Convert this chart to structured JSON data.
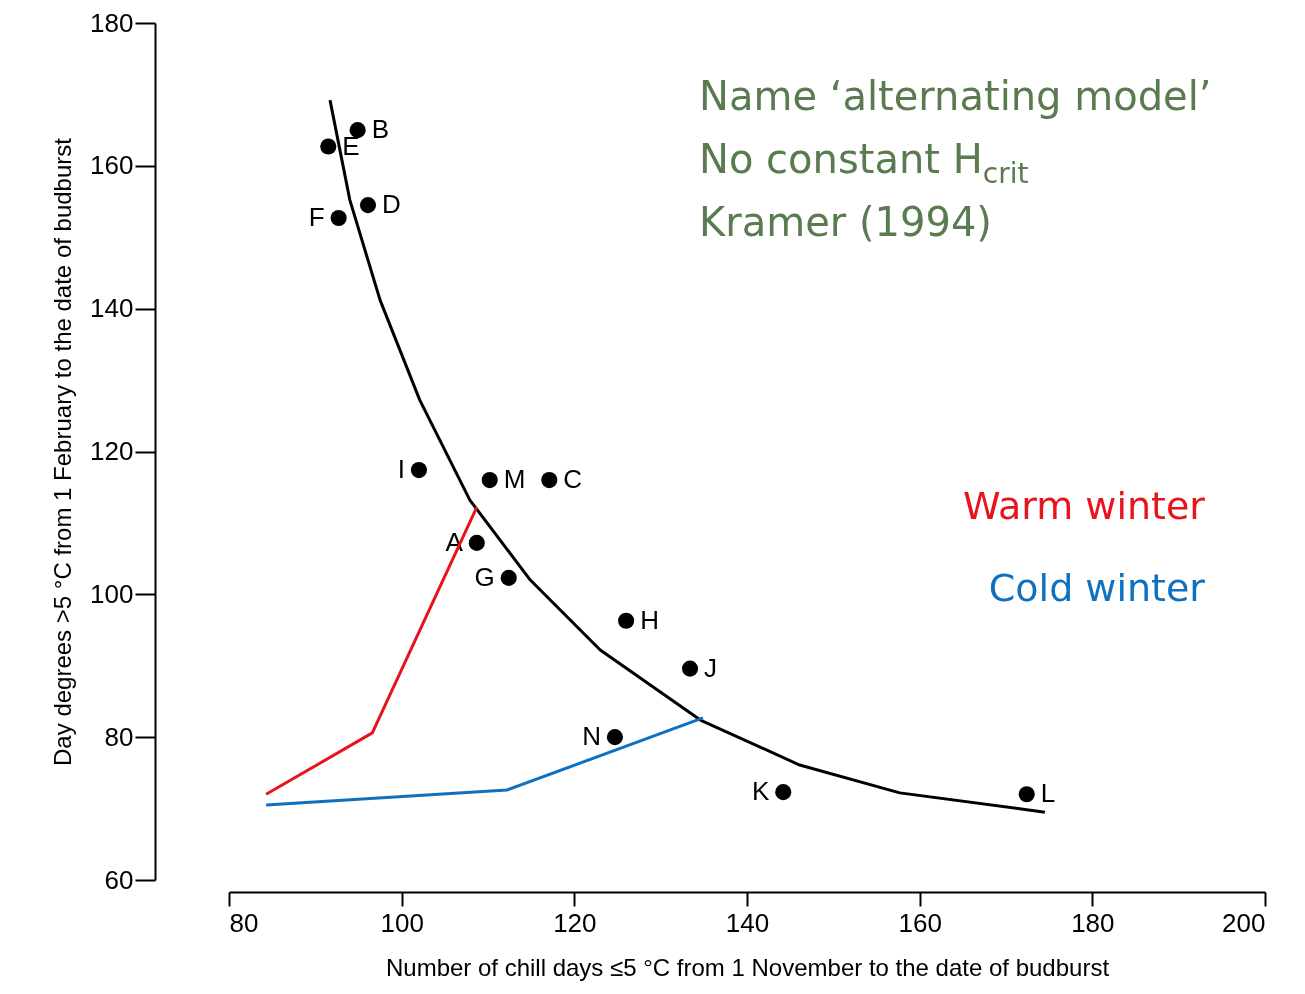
{
  "chart_data": {
    "type": "scatter",
    "xlabel": "Number of chill days ≤5 °C from 1 November to the date of budburst",
    "ylabel": "Day degrees >5 °C from 1 February to the date of budburst",
    "xlim": [
      80,
      200
    ],
    "ylim": [
      60,
      180
    ],
    "xticks": [
      80,
      100,
      120,
      140,
      160,
      180,
      200
    ],
    "yticks": [
      60,
      80,
      100,
      120,
      140,
      160,
      180
    ],
    "grid": false,
    "annotations": [
      "Name ‘alternating model’",
      "No constant H$_{crit}$",
      "Kramer (1994)"
    ],
    "series": [
      {
        "color": "#000000",
        "marker": "circle",
        "x": [
          91.5,
          94.9,
          96.1,
          92.7,
          102.0,
          110.2,
          117.1,
          108.7,
          112.4,
          126.0,
          133.4,
          124.7,
          144.2,
          172.4
        ],
        "values": [
          162.7,
          165.0,
          154.5,
          152.7,
          117.4,
          116.0,
          116.0,
          107.2,
          102.3,
          96.3,
          89.6,
          80.0,
          72.3,
          72.0
        ],
        "value_labels": [
          "E",
          "B",
          "D",
          "F",
          "I",
          "M",
          "C",
          "A",
          "G",
          "H",
          "J",
          "N",
          "K",
          "L"
        ]
      },
      {
        "type": "line",
        "color": "#000000",
        "marker": "none",
        "line_style": "solid",
        "x": [
          91.7,
          94.0,
          97.5,
          102.1,
          107.9,
          114.9,
          123.0,
          134.6,
          146.1,
          157.7,
          174.5
        ],
        "values": [
          169.2,
          155.2,
          141.2,
          127.2,
          113.2,
          102.0,
          92.2,
          82.4,
          76.1,
          72.2,
          69.5
        ]
      },
      {
        "type": "line",
        "name": "Warm winter",
        "color": "#e8141c",
        "marker": "none",
        "line_style": "solid",
        "x": [
          84.3,
          96.6,
          108.7
        ],
        "values": [
          72.0,
          80.6,
          112.2
        ]
      },
      {
        "type": "line",
        "name": "Cold winter",
        "color": "#1070c0",
        "marker": "none",
        "line_style": "solid",
        "x": [
          84.3,
          112.2,
          134.9
        ],
        "values": [
          70.5,
          72.6,
          82.7
        ]
      }
    ]
  }
}
